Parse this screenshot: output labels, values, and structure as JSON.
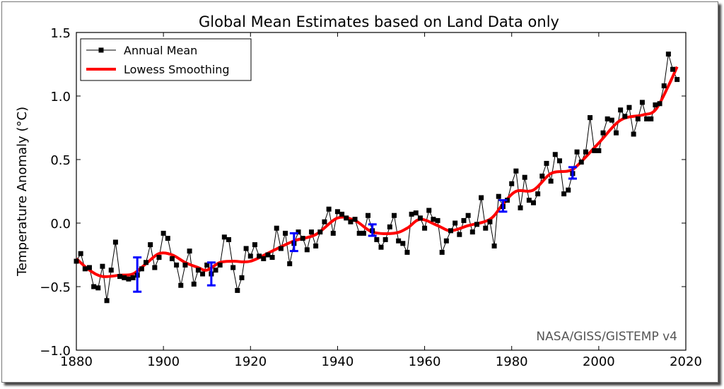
{
  "chart_data": {
    "type": "line",
    "title": "Global Mean Estimates based on Land Data only",
    "xlabel": "",
    "ylabel": "Temperature Anomaly (°C)",
    "xlim": [
      1880,
      2020
    ],
    "ylim": [
      -1.0,
      1.5
    ],
    "xticks": [
      "1880",
      "1900",
      "1920",
      "1940",
      "1960",
      "1980",
      "2000",
      "2020"
    ],
    "yticks": [
      "−1.0",
      "−0.5",
      "0.0",
      "0.5",
      "1.0",
      "1.5"
    ],
    "ytick_values": [
      -1.0,
      -0.5,
      0.0,
      0.5,
      1.0,
      1.5
    ],
    "xtick_values": [
      1880,
      1900,
      1920,
      1940,
      1960,
      1980,
      2000,
      2020
    ],
    "grid": false,
    "legend_position": "top-left",
    "annotation": "NASA/GISS/GISTEMP v4",
    "colors": {
      "annual": "#000000",
      "lowess": "#ff0000",
      "uncertainty": "#0000ff",
      "annotation": "#555555"
    },
    "series": [
      {
        "name": "Annual Mean",
        "x_start": 1880,
        "values": [
          -0.3,
          -0.24,
          -0.36,
          -0.35,
          -0.5,
          -0.51,
          -0.34,
          -0.61,
          -0.37,
          -0.15,
          -0.42,
          -0.43,
          -0.44,
          -0.43,
          -0.41,
          -0.36,
          -0.31,
          -0.17,
          -0.35,
          -0.27,
          -0.08,
          -0.12,
          -0.28,
          -0.33,
          -0.49,
          -0.33,
          -0.22,
          -0.48,
          -0.37,
          -0.4,
          -0.33,
          -0.4,
          -0.37,
          -0.33,
          -0.11,
          -0.13,
          -0.35,
          -0.53,
          -0.43,
          -0.2,
          -0.26,
          -0.17,
          -0.26,
          -0.28,
          -0.25,
          -0.27,
          -0.04,
          -0.2,
          -0.08,
          -0.32,
          -0.16,
          -0.07,
          -0.12,
          -0.21,
          -0.07,
          -0.18,
          -0.07,
          0.01,
          0.11,
          -0.08,
          0.09,
          0.07,
          0.04,
          0.01,
          0.03,
          -0.08,
          -0.08,
          0.06,
          -0.06,
          -0.13,
          -0.19,
          -0.13,
          -0.03,
          0.06,
          -0.14,
          -0.16,
          -0.23,
          0.07,
          0.08,
          0.04,
          -0.04,
          0.1,
          0.03,
          0.02,
          -0.23,
          -0.14,
          -0.06,
          0.0,
          -0.09,
          0.02,
          0.06,
          -0.07,
          -0.01,
          0.2,
          -0.04,
          0.01,
          -0.18,
          0.21,
          0.13,
          0.18,
          0.31,
          0.41,
          0.12,
          0.36,
          0.18,
          0.16,
          0.23,
          0.37,
          0.47,
          0.33,
          0.54,
          0.49,
          0.23,
          0.26,
          0.39,
          0.56,
          0.48,
          0.56,
          0.83,
          0.57,
          0.57,
          0.71,
          0.82,
          0.81,
          0.71,
          0.89,
          0.84,
          0.91,
          0.7,
          0.82,
          0.95,
          0.82,
          0.82,
          0.93,
          0.94,
          1.08,
          1.33,
          1.21,
          1.13
        ]
      },
      {
        "name": "Lowess Smoothing",
        "x": [
          1880,
          1883,
          1886,
          1890,
          1893,
          1896,
          1899,
          1902,
          1905,
          1908,
          1910,
          1913,
          1916,
          1920,
          1925,
          1930,
          1935,
          1940,
          1944,
          1948,
          1953,
          1956,
          1959,
          1963,
          1966,
          1970,
          1975,
          1978,
          1981,
          1985,
          1989,
          1993,
          1995,
          2000,
          2005,
          2010,
          2013,
          2016,
          2018
        ],
        "values": [
          -0.28,
          -0.37,
          -0.42,
          -0.41,
          -0.4,
          -0.32,
          -0.24,
          -0.25,
          -0.31,
          -0.35,
          -0.37,
          -0.31,
          -0.3,
          -0.3,
          -0.22,
          -0.14,
          -0.09,
          0.04,
          0.02,
          -0.07,
          -0.08,
          -0.04,
          0.03,
          -0.02,
          -0.06,
          -0.02,
          0.03,
          0.15,
          0.25,
          0.26,
          0.39,
          0.41,
          0.45,
          0.63,
          0.81,
          0.85,
          0.89,
          1.08,
          1.23
        ]
      }
    ],
    "uncertainty_bars": [
      {
        "x": 1894,
        "low": -0.54,
        "high": -0.27
      },
      {
        "x": 1911,
        "low": -0.49,
        "high": -0.31
      },
      {
        "x": 1930,
        "low": -0.22,
        "high": -0.08
      },
      {
        "x": 1948,
        "low": -0.1,
        "high": -0.01
      },
      {
        "x": 1978,
        "low": 0.09,
        "high": 0.18
      },
      {
        "x": 1994,
        "low": 0.35,
        "high": 0.44
      }
    ]
  }
}
